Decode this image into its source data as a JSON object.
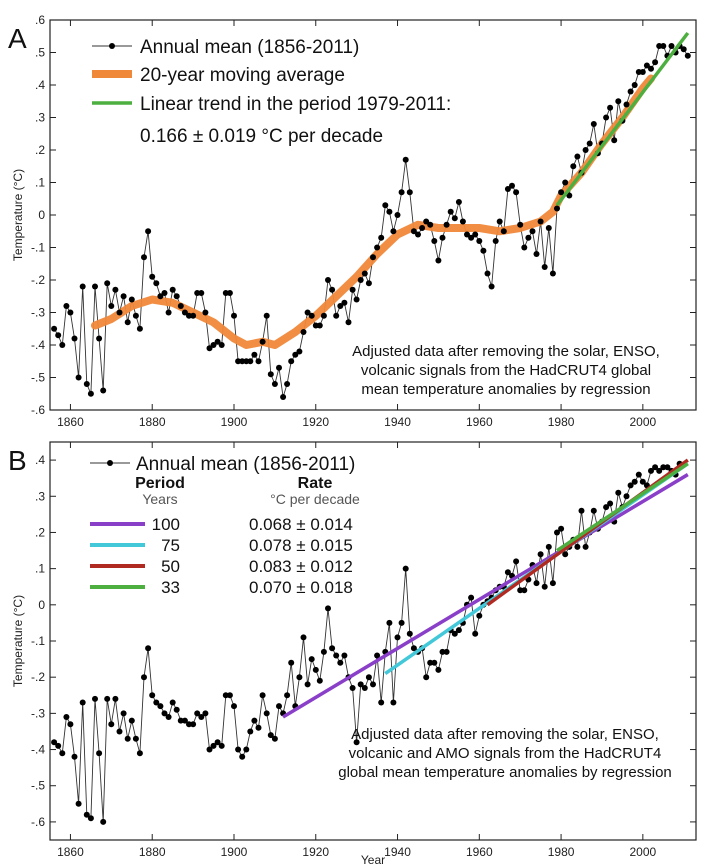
{
  "chart_data": [
    {
      "panel_letter": "A",
      "type": "line",
      "xlabel": "",
      "ylabel": "Temperature (°C)",
      "xlim": [
        1855,
        2013
      ],
      "ylim": [
        -0.6,
        0.6
      ],
      "xticks": [
        1860,
        1880,
        1900,
        1920,
        1940,
        1960,
        1980,
        2000
      ],
      "yticks": [
        -0.6,
        -0.5,
        -0.4,
        -0.3,
        -0.2,
        -0.1,
        0,
        0.1,
        0.2,
        0.3,
        0.4,
        0.5,
        0.6
      ],
      "legend_position": "top-left",
      "legend": [
        {
          "label": "Annual mean (1856-2011)"
        },
        {
          "label": "20-year moving average"
        },
        {
          "label": "Linear trend in the period 1979-2011:"
        },
        {
          "label": "0.166 ± 0.019 °C per decade"
        }
      ],
      "annotation": [
        "Adjusted data after removing the solar, ENSO,",
        "volcanic signals from the HadCRUT4 global",
        "mean temperature anomalies by regression"
      ],
      "colors": {
        "annual": "#000000",
        "moving_average": "#f0883a",
        "trend": "#4caf3f"
      },
      "series": [
        {
          "name": "Annual mean (1856-2011)",
          "x_start": 1856,
          "values": [
            -0.35,
            -0.37,
            -0.4,
            -0.28,
            -0.3,
            -0.38,
            -0.5,
            -0.22,
            -0.52,
            -0.55,
            -0.22,
            -0.38,
            -0.54,
            -0.21,
            -0.28,
            -0.23,
            -0.3,
            -0.25,
            -0.33,
            -0.26,
            -0.31,
            -0.35,
            -0.13,
            -0.05,
            -0.19,
            -0.21,
            -0.25,
            -0.24,
            -0.3,
            -0.23,
            -0.25,
            -0.28,
            -0.3,
            -0.31,
            -0.31,
            -0.24,
            -0.24,
            -0.3,
            -0.41,
            -0.4,
            -0.39,
            -0.4,
            -0.24,
            -0.24,
            -0.31,
            -0.45,
            -0.45,
            -0.45,
            -0.45,
            -0.43,
            -0.45,
            -0.39,
            -0.31,
            -0.49,
            -0.52,
            -0.47,
            -0.56,
            -0.52,
            -0.45,
            -0.43,
            -0.42,
            -0.36,
            -0.3,
            -0.31,
            -0.34,
            -0.34,
            -0.31,
            -0.2,
            -0.23,
            -0.31,
            -0.28,
            -0.27,
            -0.33,
            -0.23,
            -0.26,
            -0.2,
            -0.18,
            -0.21,
            -0.13,
            -0.1,
            -0.07,
            0.03,
            0.01,
            -0.05,
            0.0,
            0.07,
            0.17,
            0.07,
            -0.05,
            -0.06,
            -0.04,
            -0.02,
            -0.03,
            -0.08,
            -0.14,
            -0.07,
            -0.03,
            0.01,
            -0.01,
            0.04,
            -0.02,
            -0.06,
            -0.07,
            -0.06,
            -0.08,
            -0.11,
            -0.18,
            -0.22,
            -0.08,
            -0.02,
            -0.05,
            0.08,
            0.09,
            0.07,
            -0.03,
            -0.1,
            -0.07,
            -0.05,
            -0.12,
            -0.02,
            -0.16,
            -0.04,
            -0.18,
            0.02,
            0.07,
            0.1,
            0.06,
            0.15,
            0.18,
            0.13,
            0.2,
            0.22,
            0.28,
            0.19,
            0.22,
            0.3,
            0.33,
            0.23,
            0.35,
            0.29,
            0.34,
            0.38,
            0.4,
            0.44,
            0.44,
            0.46,
            0.45,
            0.47,
            0.52,
            0.52,
            0.49,
            0.52,
            0.5,
            0.52,
            0.51,
            0.49
          ]
        },
        {
          "name": "20-year moving average",
          "x": [
            1866,
            1870,
            1875,
            1880,
            1885,
            1890,
            1895,
            1900,
            1903,
            1907,
            1910,
            1915,
            1920,
            1925,
            1930,
            1935,
            1940,
            1945,
            1950,
            1955,
            1960,
            1965,
            1970,
            1975,
            1978,
            1980,
            1985,
            1990,
            1995,
            2000,
            2002
          ],
          "values": [
            -0.34,
            -0.32,
            -0.28,
            -0.26,
            -0.27,
            -0.3,
            -0.33,
            -0.38,
            -0.4,
            -0.39,
            -0.4,
            -0.36,
            -0.31,
            -0.25,
            -0.19,
            -0.12,
            -0.06,
            -0.03,
            -0.04,
            -0.04,
            -0.04,
            -0.05,
            -0.04,
            -0.02,
            0.01,
            0.06,
            0.13,
            0.22,
            0.3,
            0.39,
            0.42
          ]
        },
        {
          "name": "Linear trend in the period 1979-2011:",
          "x": [
            1979,
            2011
          ],
          "values": [
            0.03,
            0.56
          ]
        }
      ]
    },
    {
      "panel_letter": "B",
      "type": "line",
      "xlabel": "Year",
      "ylabel": "Temperature (°C)",
      "xlim": [
        1855,
        2013
      ],
      "ylim": [
        -0.65,
        0.45
      ],
      "xticks": [
        1860,
        1880,
        1900,
        1920,
        1940,
        1960,
        1980,
        2000
      ],
      "yticks": [
        -0.6,
        -0.5,
        -0.4,
        -0.3,
        -0.2,
        -0.1,
        0,
        0.1,
        0.2,
        0.3,
        0.4
      ],
      "legend_position": "top-left",
      "legend_title": "Annual mean (1856-2011)",
      "table_header": {
        "period": "Period",
        "rate": "Rate",
        "period_unit": "Years",
        "rate_unit": "°C per decade"
      },
      "table_rows": [
        {
          "period": "100",
          "rate": "0.068 ± 0.014",
          "color": "#8a3fc8"
        },
        {
          "period": "75",
          "rate": "0.078 ± 0.015",
          "color": "#42c8d8"
        },
        {
          "period": "50",
          "rate": "0.083 ± 0.012",
          "color": "#b02a22"
        },
        {
          "period": "33",
          "rate": "0.070 ± 0.018",
          "color": "#4caf3f"
        }
      ],
      "annotation": [
        "Adjusted data after removing the solar, ENSO,",
        "volcanic and AMO signals from the HadCRUT4",
        "global mean temperature anomalies by regression"
      ],
      "series": [
        {
          "name": "Annual mean (1856-2011)",
          "x_start": 1856,
          "values": [
            -0.38,
            -0.39,
            -0.41,
            -0.31,
            -0.33,
            -0.42,
            -0.55,
            -0.27,
            -0.58,
            -0.59,
            -0.26,
            -0.41,
            -0.6,
            -0.26,
            -0.33,
            -0.26,
            -0.35,
            -0.3,
            -0.37,
            -0.32,
            -0.37,
            -0.41,
            -0.2,
            -0.12,
            -0.25,
            -0.27,
            -0.28,
            -0.3,
            -0.31,
            -0.27,
            -0.29,
            -0.32,
            -0.32,
            -0.33,
            -0.33,
            -0.3,
            -0.31,
            -0.3,
            -0.4,
            -0.39,
            -0.38,
            -0.39,
            -0.25,
            -0.25,
            -0.28,
            -0.4,
            -0.42,
            -0.4,
            -0.35,
            -0.32,
            -0.34,
            -0.25,
            -0.3,
            -0.36,
            -0.37,
            -0.28,
            -0.3,
            -0.25,
            -0.16,
            -0.28,
            -0.2,
            -0.09,
            -0.22,
            -0.15,
            -0.18,
            -0.21,
            -0.13,
            -0.01,
            -0.12,
            -0.14,
            -0.16,
            -0.14,
            -0.2,
            -0.23,
            -0.38,
            -0.22,
            -0.23,
            -0.2,
            -0.22,
            -0.14,
            -0.27,
            -0.13,
            -0.05,
            -0.27,
            -0.09,
            -0.05,
            0.1,
            -0.08,
            -0.12,
            -0.13,
            -0.12,
            -0.2,
            -0.16,
            -0.16,
            -0.18,
            -0.13,
            -0.13,
            -0.07,
            -0.08,
            -0.07,
            -0.05,
            0.0,
            0.02,
            -0.08,
            -0.03,
            0.0,
            0.01,
            0.02,
            0.04,
            0.05,
            0.05,
            0.09,
            0.08,
            0.12,
            0.04,
            0.04,
            0.07,
            0.11,
            0.06,
            0.14,
            0.05,
            0.16,
            0.06,
            0.2,
            0.21,
            0.14,
            0.16,
            0.18,
            0.16,
            0.26,
            0.16,
            0.2,
            0.26,
            0.21,
            0.23,
            0.27,
            0.28,
            0.23,
            0.31,
            0.27,
            0.3,
            0.33,
            0.34,
            0.36,
            0.34,
            0.33,
            0.37,
            0.38,
            0.37,
            0.38,
            0.38,
            0.37,
            0.36,
            0.39
          ]
        },
        {
          "name": "100",
          "x": [
            1912,
            2011
          ],
          "values": [
            -0.31,
            0.36
          ]
        },
        {
          "name": "75",
          "x": [
            1937,
            2011
          ],
          "values": [
            -0.19,
            0.39
          ]
        },
        {
          "name": "50",
          "x": [
            1962,
            2011
          ],
          "values": [
            0.0,
            0.4
          ]
        },
        {
          "name": "33",
          "x": [
            1979,
            2011
          ],
          "values": [
            0.15,
            0.39
          ]
        }
      ]
    }
  ]
}
